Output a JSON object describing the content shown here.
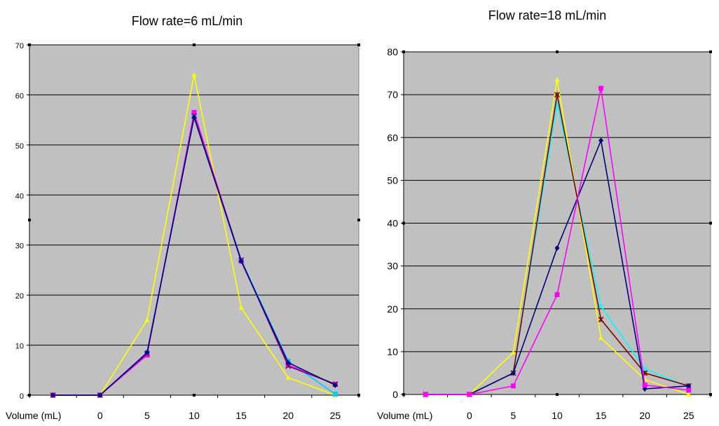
{
  "chart_data": [
    {
      "type": "line",
      "title": "Flow rate=6 mL/min",
      "xlabel": "Volume (mL)",
      "ylabel": "",
      "categories": [
        "",
        "0",
        "5",
        "10",
        "15",
        "20",
        "25"
      ],
      "ylim": [
        0,
        70
      ],
      "ytick_labels": [
        "0",
        "10",
        "20",
        "30",
        "40",
        "50",
        "60",
        "70"
      ],
      "grid": true,
      "plot_bg": "#c0c0c0",
      "series": [
        {
          "color": "#ffff00",
          "marker": "triangle",
          "values": [
            0,
            0,
            15,
            64,
            17.5,
            3.5,
            0
          ]
        },
        {
          "color": "#00ccff",
          "marker": "square",
          "values": [
            0,
            0,
            8.5,
            56,
            27,
            6.8,
            0.2
          ]
        },
        {
          "color": "#ff00ff",
          "marker": "square",
          "values": [
            0,
            0,
            8,
            56.5,
            26.8,
            6,
            2.2
          ]
        },
        {
          "color": "#800080",
          "marker": "x",
          "values": [
            0,
            0,
            8.3,
            55.8,
            27,
            5.8,
            2.2
          ]
        },
        {
          "color": "#000080",
          "marker": "diamond",
          "values": [
            0,
            0,
            8.5,
            55.5,
            26.8,
            6.5,
            2
          ]
        }
      ]
    },
    {
      "type": "line",
      "title": "Flow rate=18 mL/min",
      "xlabel": "Volume (mL)",
      "ylabel": "",
      "categories": [
        "",
        "0",
        "5",
        "10",
        "15",
        "20",
        "25"
      ],
      "ylim": [
        0,
        80
      ],
      "ytick_labels": [
        "0",
        "10",
        "20",
        "30",
        "40",
        "50",
        "60",
        "70",
        "80"
      ],
      "grid": true,
      "plot_bg": "#c0c0c0",
      "series": [
        {
          "color": "#ffff00",
          "marker": "triangle",
          "values": [
            0,
            0,
            9.8,
            73.5,
            13.2,
            3.5,
            0
          ]
        },
        {
          "color": "#00ffff",
          "marker": "x",
          "values": [
            0,
            0,
            5,
            68,
            20.5,
            6,
            1.8
          ]
        },
        {
          "color": "#800000",
          "marker": "star",
          "values": [
            0,
            0,
            5,
            70,
            17.5,
            5,
            2
          ]
        },
        {
          "color": "#000080",
          "marker": "diamond",
          "values": [
            0,
            0,
            5,
            34.2,
            59.3,
            1.3,
            2
          ]
        },
        {
          "color": "#ff00ff",
          "marker": "square",
          "values": [
            0,
            0,
            2,
            23.3,
            71.5,
            2.2,
            1
          ]
        }
      ]
    }
  ]
}
